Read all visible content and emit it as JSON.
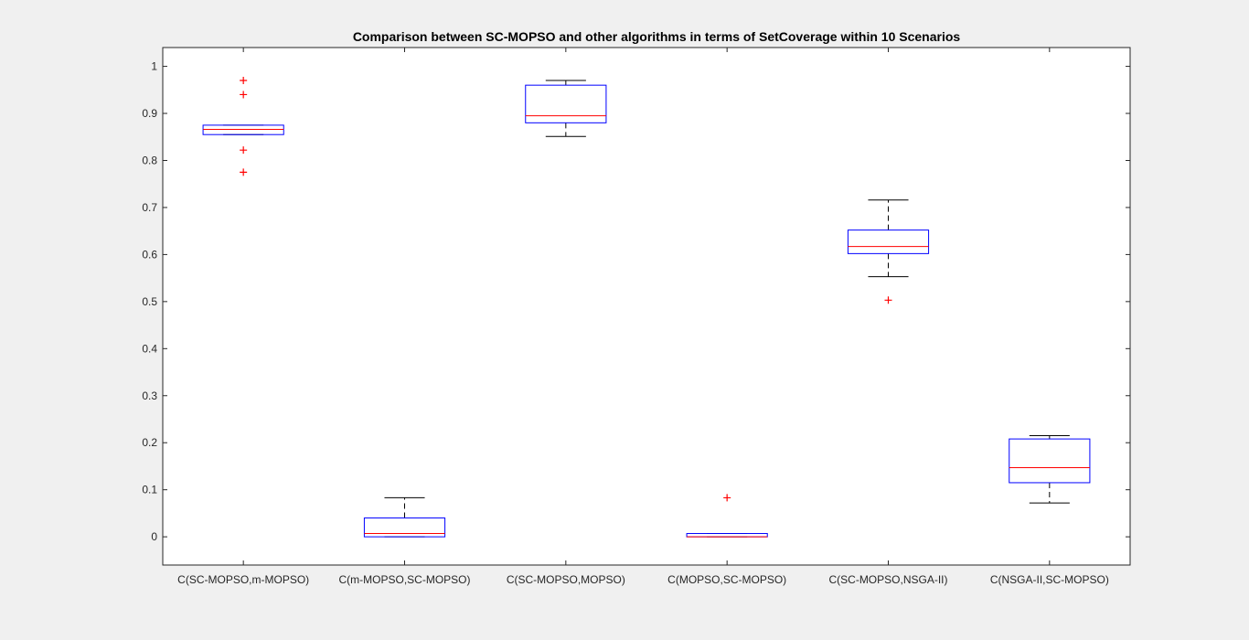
{
  "chart_data": {
    "type": "box",
    "title": "Comparison between SC-MOPSO and other algorithms in terms of SetCoverage within 10 Scenarios",
    "xlabel": "",
    "ylabel": "",
    "ylim": [
      -0.06,
      1.04
    ],
    "yticks": [
      0,
      0.1,
      0.2,
      0.3,
      0.4,
      0.5,
      0.6,
      0.7,
      0.8,
      0.9,
      1
    ],
    "grid": false,
    "colors": {
      "box": "#0000ff",
      "median": "#ff0000",
      "whisker": "#000000",
      "outlier": "#ff0000",
      "axes": "#262626",
      "plot_bg": "#ffffff",
      "figure_bg": "#f0f0f0"
    },
    "categories": [
      "C(SC-MOPSO,m-MOPSO)",
      "C(m-MOPSO,SC-MOPSO)",
      "C(SC-MOPSO,MOPSO)",
      "C(MOPSO,SC-MOPSO)",
      "C(SC-MOPSO,NSGA-II)",
      "C(NSGA-II,SC-MOPSO)"
    ],
    "boxes": [
      {
        "whisker_low": 0.855,
        "q1": 0.855,
        "median": 0.866,
        "q3": 0.875,
        "whisker_high": 0.875,
        "outliers": [
          0.97,
          0.94,
          0.822,
          0.775
        ]
      },
      {
        "whisker_low": 0,
        "q1": 0,
        "median": 0.007,
        "q3": 0.04,
        "whisker_high": 0.083,
        "outliers": []
      },
      {
        "whisker_low": 0.851,
        "q1": 0.88,
        "median": 0.895,
        "q3": 0.96,
        "whisker_high": 0.97,
        "outliers": []
      },
      {
        "whisker_low": 0,
        "q1": 0,
        "median": 0,
        "q3": 0.007,
        "whisker_high": 0.007,
        "outliers": [
          0.083
        ]
      },
      {
        "whisker_low": 0.553,
        "q1": 0.602,
        "median": 0.617,
        "q3": 0.652,
        "whisker_high": 0.716,
        "outliers": [
          0.503
        ]
      },
      {
        "whisker_low": 0.072,
        "q1": 0.115,
        "median": 0.147,
        "q3": 0.208,
        "whisker_high": 0.215,
        "outliers": []
      }
    ]
  }
}
